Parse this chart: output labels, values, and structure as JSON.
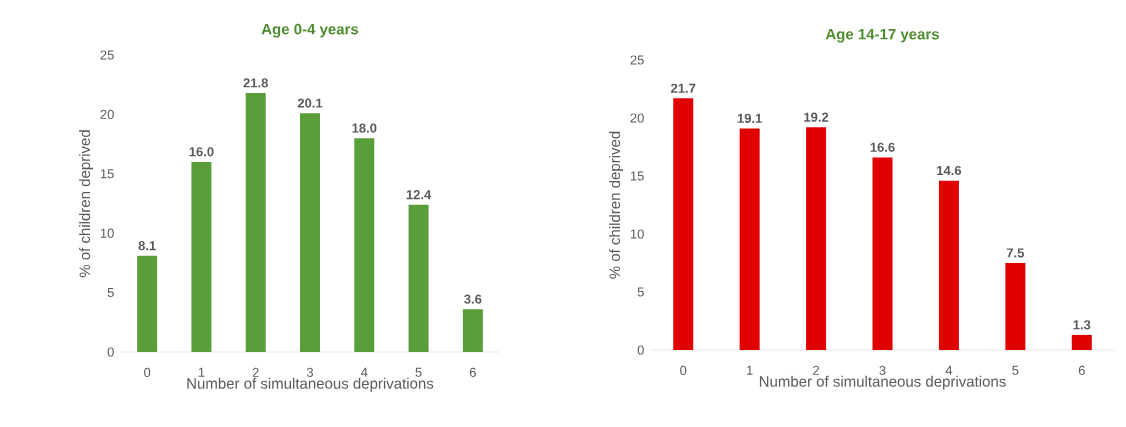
{
  "chart_data": [
    {
      "type": "bar",
      "title": "Age 0-4 years",
      "xlabel": "Number of simultaneous deprivations",
      "ylabel": "% of children deprived",
      "categories": [
        "0",
        "1",
        "2",
        "3",
        "4",
        "5",
        "6"
      ],
      "values": [
        8.1,
        16.0,
        21.8,
        20.1,
        18.0,
        12.4,
        3.6
      ],
      "color": "#5a9e3a",
      "ylim": [
        0,
        25
      ],
      "yticks": [
        0,
        5,
        10,
        15,
        20,
        25
      ],
      "value_labels": [
        "8.1",
        "16.0",
        "21.8",
        "20.1",
        "18.0",
        "12.4",
        "3.6"
      ]
    },
    {
      "type": "bar",
      "title": "Age 14-17 years",
      "xlabel": "Number of simultaneous deprivations",
      "ylabel": "% of children deprived",
      "categories": [
        "0",
        "1",
        "2",
        "3",
        "4",
        "5",
        "6"
      ],
      "values": [
        21.7,
        19.1,
        19.2,
        16.6,
        14.6,
        7.5,
        1.3
      ],
      "color": "#e00000",
      "ylim": [
        0,
        25
      ],
      "yticks": [
        0,
        5,
        10,
        15,
        20,
        25
      ],
      "data_labels": true
    }
  ]
}
